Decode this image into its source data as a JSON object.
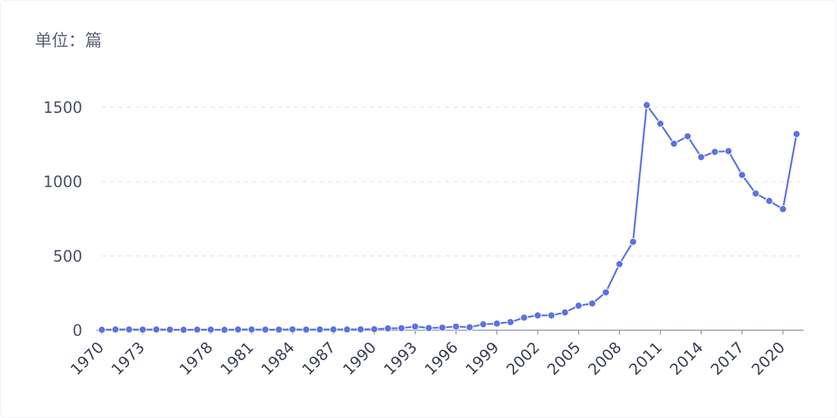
{
  "unit_label": "单位：篇",
  "colors": {
    "line": "#5b73e0",
    "grid": "#e3e6ee",
    "axis": "#8f96b8"
  },
  "chart_data": {
    "type": "line",
    "title": "",
    "xlabel": "",
    "ylabel": "单位：篇",
    "ylim": [
      0,
      1500
    ],
    "yticks": [
      0,
      500,
      1000,
      1500
    ],
    "grid": true,
    "x_tick_labels": [
      "1970",
      "1973",
      "1978",
      "1981",
      "1984",
      "1987",
      "1990",
      "1993",
      "1996",
      "1999",
      "2002",
      "2005",
      "2008",
      "2011",
      "2014",
      "2017",
      "2020"
    ],
    "x": [
      1970,
      1971,
      1972,
      1973,
      1974,
      1975,
      1976,
      1977,
      1978,
      1979,
      1980,
      1981,
      1982,
      1983,
      1984,
      1985,
      1986,
      1987,
      1988,
      1989,
      1990,
      1991,
      1992,
      1993,
      1994,
      1995,
      1996,
      1997,
      1998,
      1999,
      2000,
      2001,
      2002,
      2003,
      2004,
      2005,
      2006,
      2007,
      2008,
      2009,
      2010,
      2011,
      2012,
      2013,
      2014,
      2015,
      2016,
      2017,
      2018,
      2019,
      2020,
      2021
    ],
    "series": [
      {
        "values": [
          3,
          5,
          5,
          4,
          5,
          4,
          3,
          4,
          4,
          3,
          5,
          5,
          4,
          4,
          6,
          4,
          5,
          5,
          5,
          6,
          7,
          12,
          14,
          25,
          15,
          18,
          25,
          20,
          40,
          45,
          55,
          85,
          100,
          100,
          120,
          165,
          180,
          255,
          445,
          595,
          1515,
          1390,
          1255,
          1305,
          1165,
          1200,
          1205,
          1045,
          920,
          870,
          815,
          1320
        ]
      }
    ]
  }
}
